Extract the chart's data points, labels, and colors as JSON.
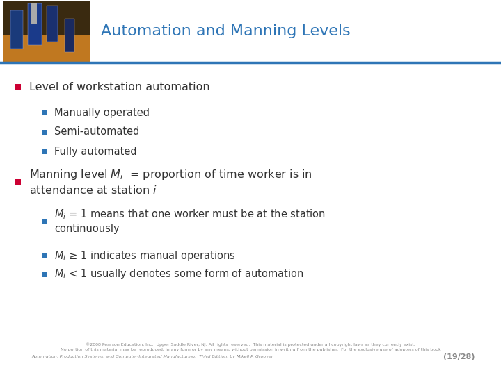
{
  "title": "Automation and Manning Levels",
  "title_color": "#2E75B6",
  "title_fontsize": 16,
  "bg_color": "#FFFFFF",
  "divider_color": "#2E75B6",
  "bullet_color_level1": "#CC0033",
  "bullet_color_level2": "#2E75B6",
  "text_color": "#333333",
  "footer_color": "#888888",
  "footer_line1": "©2008 Pearson Education, Inc., Upper Saddle River, NJ. All rights reserved.  This material is protected under all copyright laws as they currently exist.",
  "footer_line2": "No portion of this material may be reproduced, in any form or by any means, without permission in writing from the publisher.  For the exclusive use of adopters of this book",
  "footer_line3": "Automation, Production Systems, and Computer-Integrated Manufacturing,  Third Edition, by Mikell P. Groover.",
  "footer_page": "(19/28)"
}
